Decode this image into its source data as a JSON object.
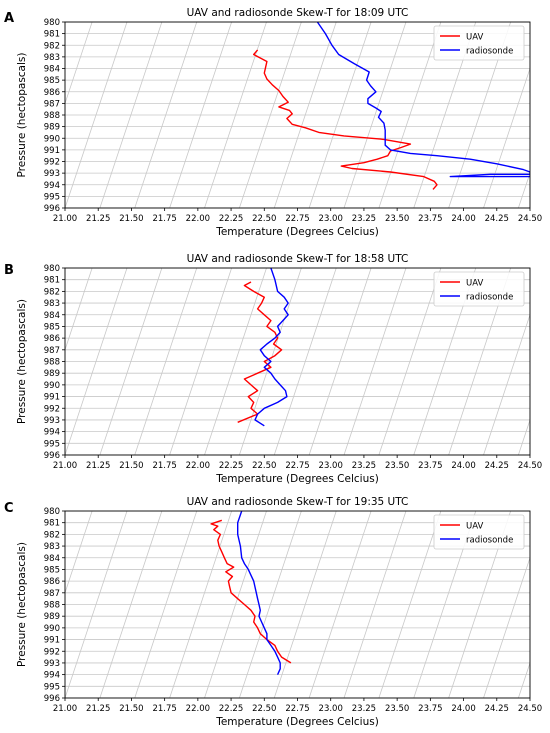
{
  "chart_data": [
    {
      "panel_label": "A",
      "type": "line",
      "title": "UAV and radiosonde Skew-T for 18:09 UTC",
      "xlabel": "Temperature (Degrees Celcius)",
      "ylabel": "Pressure (hectopascals)",
      "xlim": [
        21.0,
        24.5
      ],
      "ylim": [
        996,
        980
      ],
      "yaxis_inverted": true,
      "xticks": [
        "21.00",
        "21.25",
        "21.50",
        "21.75",
        "22.00",
        "22.25",
        "22.50",
        "22.75",
        "23.00",
        "23.25",
        "23.50",
        "23.75",
        "24.00",
        "24.25",
        "24.50"
      ],
      "yticks": [
        "980",
        "981",
        "982",
        "983",
        "984",
        "985",
        "986",
        "987",
        "988",
        "989",
        "990",
        "991",
        "992",
        "993",
        "994",
        "995",
        "996"
      ],
      "grid": true,
      "skewed_isotherms": true,
      "legend_position": "top-right",
      "series": [
        {
          "name": "UAV",
          "color": "#ff0000",
          "points": [
            [
              22.45,
              982.4
            ],
            [
              22.42,
              982.8
            ],
            [
              22.47,
              983.1
            ],
            [
              22.52,
              983.4
            ],
            [
              22.51,
              983.9
            ],
            [
              22.5,
              984.4
            ],
            [
              22.52,
              984.9
            ],
            [
              22.56,
              985.4
            ],
            [
              22.61,
              985.9
            ],
            [
              22.64,
              986.4
            ],
            [
              22.68,
              986.9
            ],
            [
              22.61,
              987.3
            ],
            [
              22.69,
              987.6
            ],
            [
              22.71,
              987.9
            ],
            [
              22.67,
              988.3
            ],
            [
              22.71,
              988.8
            ],
            [
              22.81,
              989.1
            ],
            [
              22.91,
              989.5
            ],
            [
              23.1,
              989.8
            ],
            [
              23.4,
              990.1
            ],
            [
              23.6,
              990.5
            ],
            [
              23.53,
              990.8
            ],
            [
              23.45,
              991.1
            ],
            [
              23.43,
              991.5
            ],
            [
              23.35,
              991.8
            ],
            [
              23.25,
              992.1
            ],
            [
              23.08,
              992.4
            ],
            [
              23.16,
              992.6
            ],
            [
              23.45,
              992.9
            ],
            [
              23.7,
              993.3
            ],
            [
              23.78,
              993.7
            ],
            [
              23.8,
              994.0
            ],
            [
              23.77,
              994.4
            ]
          ]
        },
        {
          "name": "radiosonde",
          "color": "#0000ff",
          "points": [
            [
              22.9,
              980
            ],
            [
              22.96,
              981
            ],
            [
              23.01,
              982
            ],
            [
              23.06,
              982.8
            ],
            [
              23.18,
              983.6
            ],
            [
              23.29,
              984.3
            ],
            [
              23.27,
              985.0
            ],
            [
              23.3,
              985.5
            ],
            [
              23.34,
              986.0
            ],
            [
              23.28,
              986.6
            ],
            [
              23.28,
              987.0
            ],
            [
              23.34,
              987.4
            ],
            [
              23.38,
              987.7
            ],
            [
              23.36,
              988.2
            ],
            [
              23.4,
              988.7
            ],
            [
              23.41,
              989.3
            ],
            [
              23.41,
              990.0
            ],
            [
              23.41,
              990.6
            ],
            [
              23.45,
              991.0
            ],
            [
              23.6,
              991.3
            ],
            [
              23.8,
              991.5
            ],
            [
              24.05,
              991.8
            ],
            [
              24.25,
              992.2
            ],
            [
              24.45,
              992.7
            ],
            [
              24.5,
              992.9
            ],
            [
              24.5,
              993.1
            ],
            [
              24.2,
              993.1
            ],
            [
              23.9,
              993.3
            ],
            [
              24.5,
              993.3
            ]
          ]
        }
      ]
    },
    {
      "panel_label": "B",
      "type": "line",
      "title": "UAV and radiosonde Skew-T for 18:58 UTC",
      "xlabel": "Temperature (Degrees Celcius)",
      "ylabel": "Pressure (hectopascals)",
      "xlim": [
        21.0,
        24.5
      ],
      "ylim": [
        996,
        980
      ],
      "yaxis_inverted": true,
      "xticks": [
        "21.00",
        "21.25",
        "21.50",
        "21.75",
        "22.00",
        "22.25",
        "22.50",
        "22.75",
        "23.00",
        "23.25",
        "23.50",
        "23.75",
        "24.00",
        "24.25",
        "24.50"
      ],
      "yticks": [
        "980",
        "981",
        "982",
        "983",
        "984",
        "985",
        "986",
        "987",
        "988",
        "989",
        "990",
        "991",
        "992",
        "993",
        "994",
        "995",
        "996"
      ],
      "grid": true,
      "skewed_isotherms": true,
      "legend_position": "top-right",
      "series": [
        {
          "name": "UAV",
          "color": "#ff0000",
          "points": [
            [
              22.4,
              981.2
            ],
            [
              22.35,
              981.5
            ],
            [
              22.42,
              982.0
            ],
            [
              22.5,
              982.5
            ],
            [
              22.48,
              983.0
            ],
            [
              22.45,
              983.5
            ],
            [
              22.5,
              984.0
            ],
            [
              22.55,
              984.5
            ],
            [
              22.52,
              985.0
            ],
            [
              22.58,
              985.5
            ],
            [
              22.6,
              986.0
            ],
            [
              22.57,
              986.5
            ],
            [
              22.63,
              987.0
            ],
            [
              22.58,
              987.5
            ],
            [
              22.5,
              988.0
            ],
            [
              22.55,
              988.5
            ],
            [
              22.45,
              989.0
            ],
            [
              22.35,
              989.5
            ],
            [
              22.4,
              990.0
            ],
            [
              22.45,
              990.5
            ],
            [
              22.38,
              991.0
            ],
            [
              22.42,
              991.5
            ],
            [
              22.4,
              992.0
            ],
            [
              22.45,
              992.5
            ],
            [
              22.3,
              993.2
            ]
          ]
        },
        {
          "name": "radiosonde",
          "color": "#0000ff",
          "points": [
            [
              22.55,
              980.0
            ],
            [
              22.58,
              981.0
            ],
            [
              22.6,
              982.0
            ],
            [
              22.65,
              982.5
            ],
            [
              22.68,
              983.0
            ],
            [
              22.65,
              983.5
            ],
            [
              22.68,
              984.0
            ],
            [
              22.64,
              984.5
            ],
            [
              22.6,
              985.0
            ],
            [
              22.62,
              985.5
            ],
            [
              22.58,
              986.0
            ],
            [
              22.52,
              986.5
            ],
            [
              22.47,
              987.0
            ],
            [
              22.5,
              987.5
            ],
            [
              22.55,
              988.0
            ],
            [
              22.5,
              988.5
            ],
            [
              22.55,
              989.0
            ],
            [
              22.58,
              989.5
            ],
            [
              22.62,
              990.0
            ],
            [
              22.66,
              990.5
            ],
            [
              22.67,
              991.0
            ],
            [
              22.6,
              991.5
            ],
            [
              22.5,
              992.0
            ],
            [
              22.45,
              992.5
            ],
            [
              22.43,
              993.0
            ],
            [
              22.5,
              993.5
            ]
          ]
        }
      ]
    },
    {
      "panel_label": "C",
      "type": "line",
      "title": "UAV and radiosonde Skew-T for 19:35 UTC",
      "xlabel": "Temperature (Degrees Celcius)",
      "ylabel": "Pressure (hectopascals)",
      "xlim": [
        21.0,
        24.5
      ],
      "ylim": [
        996,
        980
      ],
      "yaxis_inverted": true,
      "xticks": [
        "21.00",
        "21.25",
        "21.50",
        "21.75",
        "22.00",
        "22.25",
        "22.50",
        "22.75",
        "23.00",
        "23.25",
        "23.50",
        "23.75",
        "24.00",
        "24.25",
        "24.50"
      ],
      "yticks": [
        "980",
        "981",
        "982",
        "983",
        "984",
        "985",
        "986",
        "987",
        "988",
        "989",
        "990",
        "991",
        "992",
        "993",
        "994",
        "995",
        "996"
      ],
      "grid": true,
      "skewed_isotherms": true,
      "legend_position": "top-right",
      "series": [
        {
          "name": "UAV",
          "color": "#ff0000",
          "points": [
            [
              22.18,
              980.8
            ],
            [
              22.1,
              981.1
            ],
            [
              22.15,
              981.3
            ],
            [
              22.12,
              981.6
            ],
            [
              22.17,
              982.0
            ],
            [
              22.15,
              982.5
            ],
            [
              22.16,
              983.0
            ],
            [
              22.18,
              983.5
            ],
            [
              22.2,
              984.0
            ],
            [
              22.22,
              984.5
            ],
            [
              22.27,
              984.8
            ],
            [
              22.21,
              985.2
            ],
            [
              22.26,
              985.6
            ],
            [
              22.23,
              986.0
            ],
            [
              22.24,
              986.5
            ],
            [
              22.25,
              987.0
            ],
            [
              22.3,
              987.5
            ],
            [
              22.35,
              988.0
            ],
            [
              22.4,
              988.5
            ],
            [
              22.43,
              989.0
            ],
            [
              22.42,
              989.5
            ],
            [
              22.45,
              990.0
            ],
            [
              22.47,
              990.5
            ],
            [
              22.52,
              991.0
            ],
            [
              22.58,
              991.5
            ],
            [
              22.6,
              992.0
            ],
            [
              22.63,
              992.5
            ],
            [
              22.7,
              993.0
            ]
          ]
        },
        {
          "name": "radiosonde",
          "color": "#0000ff",
          "points": [
            [
              22.33,
              980.0
            ],
            [
              22.3,
              981.0
            ],
            [
              22.3,
              982.0
            ],
            [
              22.32,
              983.0
            ],
            [
              22.33,
              984.0
            ],
            [
              22.35,
              984.5
            ],
            [
              22.38,
              985.0
            ],
            [
              22.4,
              985.5
            ],
            [
              22.42,
              986.0
            ],
            [
              22.43,
              986.5
            ],
            [
              22.44,
              987.0
            ],
            [
              22.45,
              987.5
            ],
            [
              22.46,
              988.0
            ],
            [
              22.47,
              988.5
            ],
            [
              22.46,
              989.0
            ],
            [
              22.48,
              989.5
            ],
            [
              22.5,
              990.0
            ],
            [
              22.52,
              990.5
            ],
            [
              22.52,
              991.0
            ],
            [
              22.55,
              991.5
            ],
            [
              22.58,
              992.0
            ],
            [
              22.6,
              992.5
            ],
            [
              22.62,
              993.0
            ],
            [
              22.62,
              993.5
            ],
            [
              22.6,
              994.0
            ]
          ]
        }
      ]
    }
  ]
}
